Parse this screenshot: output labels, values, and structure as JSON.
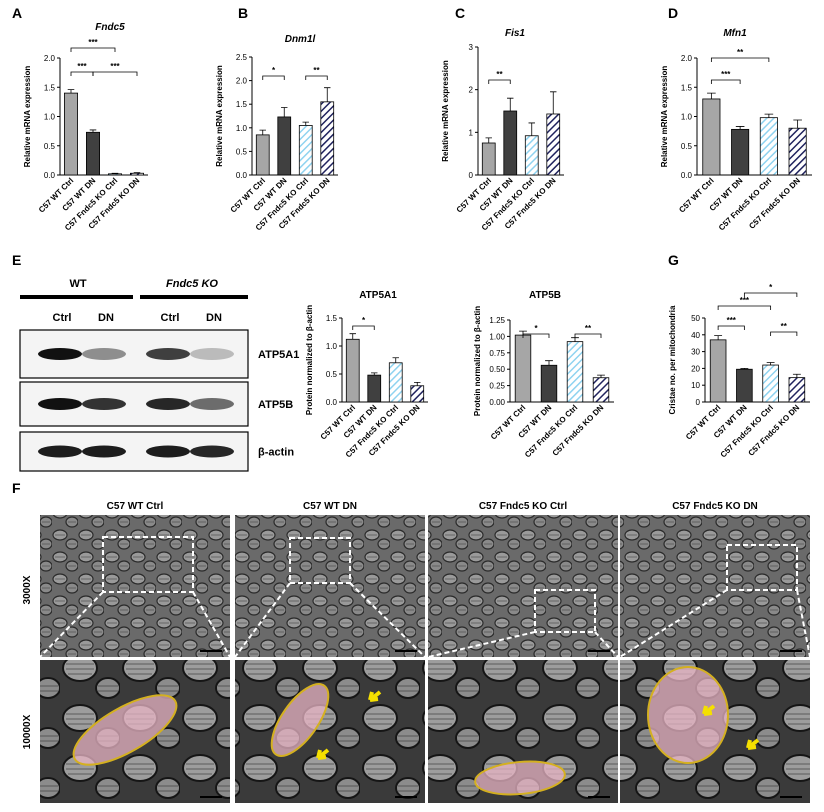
{
  "panel_labels": [
    "A",
    "B",
    "C",
    "D",
    "E",
    "F",
    "G"
  ],
  "chart_data": [
    {
      "type": "bar",
      "title": "Fndc5",
      "ylabel": "Relative mRNA expression",
      "categories": [
        "C57 WT Ctrl",
        "C57 WT DN",
        "C57 Fndc5 KO Ctrl",
        "C57 Fndc5 KO DN"
      ],
      "values": [
        1.4,
        0.73,
        0.02,
        0.03
      ],
      "errors": [
        0.06,
        0.04,
        0.01,
        0.01
      ],
      "colors": [
        "#a6a6a6",
        "#404040",
        "#8fd3f0",
        "#20235e"
      ],
      "hatch": [
        false,
        false,
        true,
        true
      ],
      "ylim": [
        0,
        2
      ],
      "yticks": [
        {
          "value": 0,
          "label": "0.0"
        },
        {
          "value": 0.5,
          "label": "0.5"
        },
        {
          "value": 1,
          "label": "1.0"
        },
        {
          "value": 1.5,
          "label": "1.5"
        },
        {
          "value": 2,
          "label": "2.0"
        }
      ],
      "annotations": [
        "***",
        "***",
        "***"
      ]
    },
    {
      "type": "bar",
      "title": "Dnm1l",
      "ylabel": "Relative mRNA expression",
      "categories": [
        "C57 WT Ctrl",
        "C57 WT DN",
        "C57 Fndc5 KO Ctrl",
        "C57 Fndc5 KO DN"
      ],
      "values": [
        0.85,
        1.23,
        1.05,
        1.55
      ],
      "errors": [
        0.1,
        0.2,
        0.07,
        0.3
      ],
      "colors": [
        "#a6a6a6",
        "#404040",
        "#8fd3f0",
        "#20235e"
      ],
      "hatch": [
        false,
        false,
        true,
        true
      ],
      "ylim": [
        0,
        2.5
      ],
      "yticks": [
        {
          "value": 0,
          "label": "0.0"
        },
        {
          "value": 0.5,
          "label": "0.5"
        },
        {
          "value": 1,
          "label": "1.0"
        },
        {
          "value": 1.5,
          "label": "1.5"
        },
        {
          "value": 2,
          "label": "2.0"
        },
        {
          "value": 2.5,
          "label": "2.5"
        }
      ],
      "annotations": [
        "*",
        "**"
      ]
    },
    {
      "type": "bar",
      "title": "Fis1",
      "ylabel": "Relative mRNA expression",
      "categories": [
        "C57 WT Ctrl",
        "C57 WT DN",
        "C57 Fndc5 KO Ctrl",
        "C57 Fndc5 KO DN"
      ],
      "values": [
        0.75,
        1.5,
        0.92,
        1.43
      ],
      "errors": [
        0.12,
        0.3,
        0.3,
        0.52
      ],
      "colors": [
        "#a6a6a6",
        "#404040",
        "#8fd3f0",
        "#20235e"
      ],
      "hatch": [
        false,
        false,
        true,
        true
      ],
      "ylim": [
        0,
        3
      ],
      "yticks": [
        0,
        1,
        2,
        3
      ],
      "annotations": [
        "**"
      ]
    },
    {
      "type": "bar",
      "title": "Mfn1",
      "ylabel": "Relative mRNA expression",
      "categories": [
        "C57 WT Ctrl",
        "C57 WT DN",
        "C57 Fndc5 KO Ctrl",
        "C57 Fndc5 KO DN"
      ],
      "values": [
        1.3,
        0.78,
        0.98,
        0.8
      ],
      "errors": [
        0.1,
        0.05,
        0.06,
        0.14
      ],
      "colors": [
        "#a6a6a6",
        "#404040",
        "#8fd3f0",
        "#20235e"
      ],
      "hatch": [
        false,
        false,
        true,
        true
      ],
      "ylim": [
        0,
        2
      ],
      "yticks": [
        {
          "value": 0,
          "label": "0.0"
        },
        {
          "value": 0.5,
          "label": "0.5"
        },
        {
          "value": 1,
          "label": "1.0"
        },
        {
          "value": 1.5,
          "label": "1.5"
        },
        {
          "value": 2,
          "label": "2.0"
        }
      ],
      "annotations": [
        "**",
        "***"
      ]
    },
    {
      "type": "bar",
      "title": "ATP5A1",
      "ylabel": "Protein normalized to β-actin",
      "categories": [
        "C57 WT Ctrl",
        "C57 WT DN",
        "C57 Fndc5 KO Ctrl",
        "C57 Fndc5 KO DN"
      ],
      "values": [
        1.12,
        0.48,
        0.7,
        0.29
      ],
      "errors": [
        0.1,
        0.04,
        0.09,
        0.06
      ],
      "colors": [
        "#a6a6a6",
        "#404040",
        "#8fd3f0",
        "#20235e"
      ],
      "hatch": [
        false,
        false,
        true,
        true
      ],
      "ylim": [
        0,
        1.5
      ],
      "yticks": [
        {
          "value": 0,
          "label": "0.0"
        },
        {
          "value": 0.5,
          "label": "0.5"
        },
        {
          "value": 1,
          "label": "1.0"
        },
        {
          "value": 1.5,
          "label": "1.5"
        }
      ],
      "annotations": [
        "*"
      ]
    },
    {
      "type": "bar",
      "title": "ATP5B",
      "ylabel": "Protein normalized to β-actin",
      "categories": [
        "C57 WT Ctrl",
        "C57 WT DN",
        "C57 Fndc5 KO Ctrl",
        "C57 Fndc5 KO DN"
      ],
      "values": [
        1.02,
        0.56,
        0.92,
        0.37
      ],
      "errors": [
        0.06,
        0.07,
        0.06,
        0.04
      ],
      "colors": [
        "#a6a6a6",
        "#404040",
        "#8fd3f0",
        "#20235e"
      ],
      "hatch": [
        false,
        false,
        true,
        true
      ],
      "ylim": [
        0,
        1.25
      ],
      "yticks": [
        {
          "value": 0,
          "label": "0.00"
        },
        {
          "value": 0.25,
          "label": "0.25"
        },
        {
          "value": 0.5,
          "label": "0.50"
        },
        {
          "value": 0.75,
          "label": "0.75"
        },
        {
          "value": 1,
          "label": "1.00"
        },
        {
          "value": 1.25,
          "label": "1.25"
        }
      ],
      "annotations": [
        "*",
        "**"
      ]
    },
    {
      "type": "bar",
      "ylabel": "Cristae no. per mitochondria",
      "categories": [
        "C57 WT Ctrl",
        "C57 WT DN",
        "C57 Fndc5 KO Ctrl",
        "C57 Fndc5 KO DN"
      ],
      "values": [
        37,
        19.5,
        22,
        14.5
      ],
      "errors": [
        2.5,
        0.5,
        1.5,
        2
      ],
      "colors": [
        "#a6a6a6",
        "#404040",
        "#8fd3f0",
        "#20235e"
      ],
      "hatch": [
        false,
        false,
        true,
        true
      ],
      "ylim": [
        0,
        50
      ],
      "yticks": [
        0,
        10,
        20,
        30,
        40,
        50
      ],
      "annotations": [
        "*",
        "***",
        "***",
        "**"
      ]
    }
  ],
  "blot": {
    "groups": [
      "WT",
      "Fndc5 KO"
    ],
    "lanes": [
      "Ctrl",
      "DN",
      "Ctrl",
      "DN"
    ],
    "rows": [
      "ATP5A1",
      "ATP5B",
      "β-actin"
    ]
  },
  "em": {
    "columns": [
      "C57 WT Ctrl",
      "C57 WT DN",
      "C57 Fndc5 KO Ctrl",
      "C57 Fndc5 KO DN"
    ],
    "rows": [
      "3000X",
      "10000X"
    ]
  }
}
